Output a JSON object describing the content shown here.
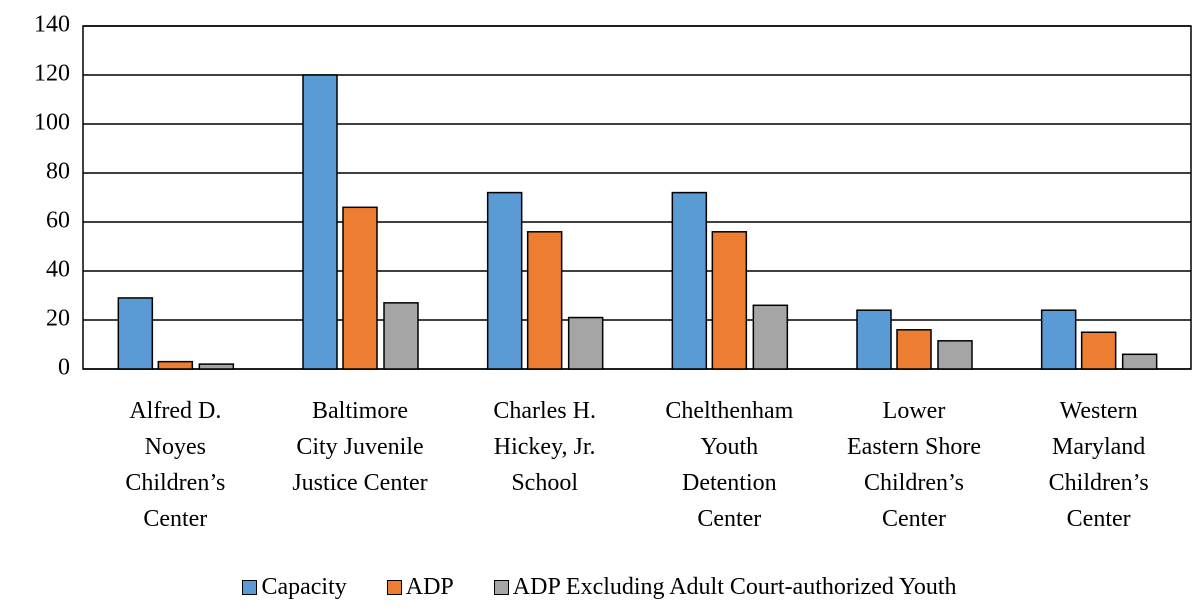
{
  "chart_data": {
    "type": "bar",
    "categories": [
      "Alfred D.\nNoyes\nChildren’s\nCenter",
      "Baltimore\nCity Juvenile\nJustice Center",
      "Charles H.\nHickey, Jr.\nSchool",
      "Chelthenham\nYouth\nDetention\nCenter",
      "Lower\nEastern Shore\nChildren’s\nCenter",
      "Western\nMaryland\nChildren’s\nCenter"
    ],
    "series": [
      {
        "name": "Capacity",
        "color": "#5b9bd5",
        "values": [
          29,
          120,
          72,
          72,
          24,
          24
        ]
      },
      {
        "name": "ADP",
        "color": "#ed7d31",
        "values": [
          3,
          66,
          56,
          56,
          16,
          15
        ]
      },
      {
        "name": "ADP Excluding Adult Court-authorized Youth",
        "color": "#a5a5a5",
        "values": [
          2,
          27,
          21,
          26,
          11.5,
          6
        ]
      }
    ],
    "ylim": [
      0,
      140
    ],
    "yticks": [
      0,
      20,
      40,
      60,
      80,
      100,
      120,
      140
    ],
    "grid": true,
    "legend": "bottom"
  }
}
